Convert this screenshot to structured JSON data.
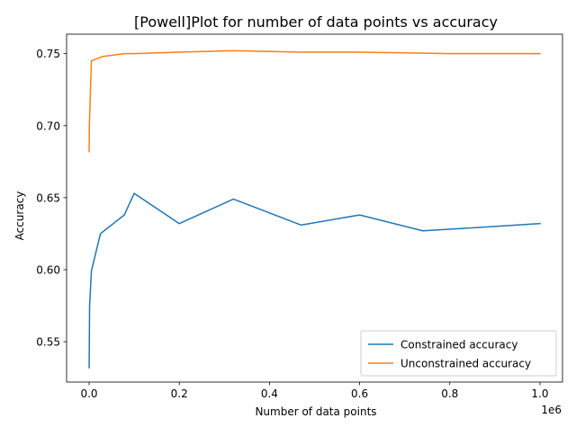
{
  "chart_data": {
    "type": "line",
    "title": "[Powell]Plot for number of data points vs accuracy",
    "xlabel": "Number of data points",
    "ylabel": "Accuracy",
    "x_offset_label": "1e6",
    "xlim": [
      -50000,
      1050000
    ],
    "ylim": [
      0.522,
      0.7635
    ],
    "xticks": [
      0,
      200000,
      400000,
      600000,
      800000,
      1000000
    ],
    "xtick_labels": [
      "0.0",
      "0.2",
      "0.4",
      "0.6",
      "0.8",
      "1.0"
    ],
    "yticks": [
      0.55,
      0.6,
      0.65,
      0.7,
      0.75
    ],
    "ytick_labels": [
      "0.55",
      "0.60",
      "0.65",
      "0.70",
      "0.75"
    ],
    "grid": false,
    "legend_position": "lower-right",
    "series": [
      {
        "name": "Constrained accuracy",
        "color": "#1f77b4",
        "points": [
          [
            0,
            0.532
          ],
          [
            1000,
            0.575
          ],
          [
            5000,
            0.599
          ],
          [
            25000,
            0.625
          ],
          [
            78000,
            0.638
          ],
          [
            100000,
            0.653
          ],
          [
            200000,
            0.632
          ],
          [
            320000,
            0.649
          ],
          [
            470000,
            0.631
          ],
          [
            600000,
            0.638
          ],
          [
            740000,
            0.627
          ],
          [
            900000,
            0.63
          ],
          [
            1000000,
            0.632
          ]
        ]
      },
      {
        "name": "Unconstrained accuracy",
        "color": "#ff7f0e",
        "points": [
          [
            0,
            0.682
          ],
          [
            500,
            0.7
          ],
          [
            5000,
            0.745
          ],
          [
            30000,
            0.748
          ],
          [
            78000,
            0.75
          ],
          [
            100000,
            0.75
          ],
          [
            200000,
            0.751
          ],
          [
            320000,
            0.752
          ],
          [
            470000,
            0.751
          ],
          [
            600000,
            0.751
          ],
          [
            800000,
            0.75
          ],
          [
            1000000,
            0.75
          ]
        ]
      }
    ]
  }
}
